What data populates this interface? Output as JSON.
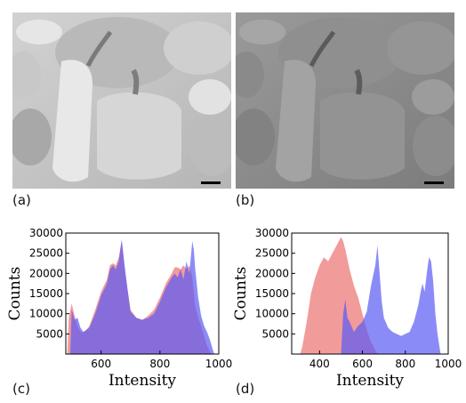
{
  "panels": {
    "a": "(a)",
    "b": "(b)",
    "c": "(c)",
    "d": "(d)"
  },
  "colors": {
    "series_1": "#f08a8a",
    "series_2": "#5a5af5",
    "photo_a_base": "#c4c4c4",
    "photo_b_base": "#8e8e8e",
    "scale_bar": "#000000"
  },
  "images": {
    "a": {
      "description_icon": "peppers-photo-icon"
    },
    "b": {
      "description_icon": "peppers-processed-photo-icon"
    }
  },
  "chart_data": [
    {
      "type": "area",
      "panel": "(c)",
      "xlabel": "Intensity",
      "ylabel": "Counts",
      "xlim": [
        480,
        1000
      ],
      "ylim": [
        0,
        30000
      ],
      "xticks": [
        600,
        800,
        1000
      ],
      "yticks": [
        5000,
        10000,
        15000,
        20000,
        25000,
        30000
      ],
      "series": [
        {
          "color": "#f08a8a",
          "x": [
            485,
            490,
            500,
            510,
            520,
            530,
            540,
            550,
            560,
            580,
            600,
            620,
            630,
            640,
            650,
            660,
            670,
            680,
            690,
            700,
            720,
            740,
            760,
            780,
            800,
            820,
            840,
            850,
            860,
            870,
            880,
            890,
            900,
            910,
            920,
            930,
            940,
            950,
            960,
            970,
            975
          ],
          "y": [
            0,
            9000,
            12500,
            9500,
            7000,
            5500,
            5500,
            6000,
            7000,
            11000,
            15500,
            18500,
            22000,
            22500,
            22000,
            24000,
            28000,
            21000,
            16000,
            11000,
            9000,
            8500,
            9500,
            11000,
            14000,
            17500,
            20000,
            21500,
            21500,
            21000,
            22000,
            21000,
            22000,
            19000,
            12000,
            9000,
            7000,
            4500,
            2000,
            500,
            0
          ]
        },
        {
          "color": "#5a5af5",
          "x": [
            495,
            500,
            510,
            520,
            530,
            540,
            550,
            560,
            580,
            600,
            620,
            630,
            640,
            650,
            660,
            670,
            680,
            690,
            700,
            720,
            740,
            760,
            780,
            800,
            820,
            840,
            850,
            860,
            870,
            880,
            890,
            900,
            910,
            915,
            920,
            930,
            940,
            950,
            960,
            970,
            980,
            985
          ],
          "y": [
            0,
            11000,
            8500,
            9000,
            6500,
            5500,
            6000,
            6500,
            10000,
            14500,
            17500,
            21000,
            22000,
            21000,
            23000,
            28500,
            22000,
            16000,
            10500,
            9000,
            8500,
            9000,
            10000,
            13000,
            16500,
            19000,
            20000,
            19000,
            21000,
            18500,
            23000,
            20000,
            28000,
            26000,
            21000,
            14000,
            9500,
            7000,
            5500,
            3500,
            1000,
            0
          ]
        }
      ]
    },
    {
      "type": "area",
      "panel": "(d)",
      "xlabel": "Intensity",
      "ylabel": "Counts",
      "xlim": [
        270,
        1000
      ],
      "ylim": [
        0,
        30000
      ],
      "xticks": [
        400,
        600,
        800,
        1000
      ],
      "yticks": [
        5000,
        10000,
        15000,
        20000,
        25000,
        30000
      ],
      "series": [
        {
          "color": "#f08a8a",
          "x": [
            310,
            320,
            340,
            360,
            380,
            400,
            420,
            440,
            460,
            480,
            500,
            510,
            520,
            540,
            560,
            580,
            600,
            620,
            640,
            660,
            670
          ],
          "y": [
            0,
            2000,
            8000,
            15000,
            19000,
            22000,
            24000,
            23000,
            25000,
            27000,
            29000,
            28000,
            26000,
            21000,
            17000,
            14000,
            10000,
            6000,
            3000,
            1000,
            0
          ]
        },
        {
          "color": "#5a5af5",
          "x": [
            500,
            510,
            520,
            530,
            540,
            560,
            580,
            600,
            620,
            640,
            660,
            670,
            680,
            690,
            700,
            720,
            740,
            760,
            780,
            800,
            820,
            840,
            860,
            870,
            880,
            890,
            900,
            910,
            920,
            930,
            940,
            950,
            960,
            965
          ],
          "y": [
            0,
            10000,
            13500,
            9000,
            8000,
            5500,
            7000,
            8000,
            10500,
            17000,
            22000,
            27000,
            20000,
            13000,
            9000,
            6500,
            5500,
            5000,
            4500,
            5000,
            5500,
            8000,
            12000,
            15000,
            17500,
            15500,
            20000,
            24000,
            23000,
            18000,
            10000,
            5000,
            1500,
            0
          ]
        }
      ]
    }
  ]
}
